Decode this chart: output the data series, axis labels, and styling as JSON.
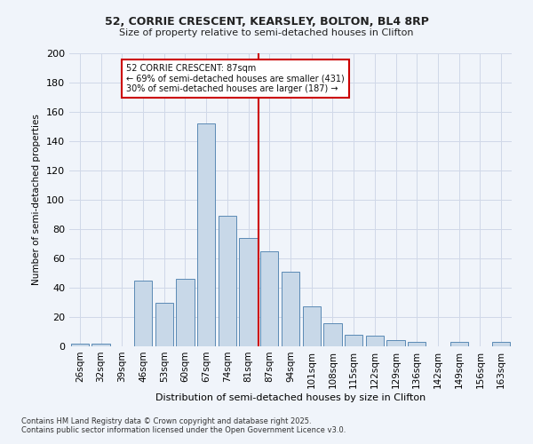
{
  "title1": "52, CORRIE CRESCENT, KEARSLEY, BOLTON, BL4 8RP",
  "title2": "Size of property relative to semi-detached houses in Clifton",
  "xlabel": "Distribution of semi-detached houses by size in Clifton",
  "ylabel": "Number of semi-detached properties",
  "footnote1": "Contains HM Land Registry data © Crown copyright and database right 2025.",
  "footnote2": "Contains public sector information licensed under the Open Government Licence v3.0.",
  "bar_labels": [
    "26sqm",
    "32sqm",
    "39sqm",
    "46sqm",
    "53sqm",
    "60sqm",
    "67sqm",
    "74sqm",
    "81sqm",
    "87sqm",
    "94sqm",
    "101sqm",
    "108sqm",
    "115sqm",
    "122sqm",
    "129sqm",
    "136sqm",
    "142sqm",
    "149sqm",
    "156sqm",
    "163sqm"
  ],
  "bar_values": [
    2,
    2,
    0,
    45,
    30,
    46,
    152,
    89,
    74,
    65,
    51,
    27,
    16,
    8,
    7,
    4,
    3,
    0,
    3,
    0,
    3
  ],
  "bar_color": "#c8d8e8",
  "bar_edge_color": "#5a8ab5",
  "grid_color": "#d0d8e8",
  "background_color": "#f0f4fa",
  "vline_x": 8.5,
  "vline_color": "#cc0000",
  "annotation_title": "52 CORRIE CRESCENT: 87sqm",
  "annotation_line1": "← 69% of semi-detached houses are smaller (431)",
  "annotation_line2": "30% of semi-detached houses are larger (187) →",
  "annotation_box_color": "#cc0000",
  "ylim": [
    0,
    200
  ],
  "yticks": [
    0,
    20,
    40,
    60,
    80,
    100,
    120,
    140,
    160,
    180,
    200
  ]
}
